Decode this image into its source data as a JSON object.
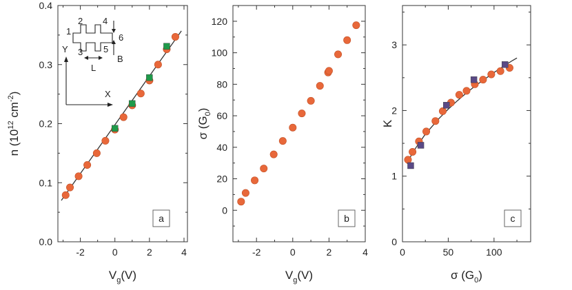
{
  "colors": {
    "circle_marker": "#e8683a",
    "circle_stroke": "#c24f25",
    "square_green": "#1f9a4a",
    "square_purple": "#5a4a86",
    "fit_line": "#333333",
    "axis": "#333333"
  },
  "chart_data": [
    {
      "panel": "a",
      "type": "scatter",
      "xlabel": "V",
      "xlabel_sub": "g",
      "xlabel_unit": "(V)",
      "ylabel": "n (10",
      "ylabel_sup1": "12",
      "ylabel_mid": " cm",
      "ylabel_sup2": "-2",
      "ylabel_end": ")",
      "xlim": [
        -3.3,
        4.2
      ],
      "ylim": [
        0,
        0.4
      ],
      "xticks": [
        -2,
        0,
        2,
        4
      ],
      "xtick_labels": [
        "-2",
        "0",
        "2",
        "4"
      ],
      "yticks": [
        0,
        0.1,
        0.2,
        0.3,
        0.4
      ],
      "ytick_labels": [
        "0.0",
        "0.1",
        "0.2",
        "0.3",
        "0.4"
      ],
      "xminor": [
        -3,
        -1,
        1,
        3
      ],
      "yminor": [
        0.05,
        0.15,
        0.25,
        0.35
      ],
      "panel_label": "a",
      "series": [
        {
          "marker": "circle",
          "x": [
            -2.85,
            -2.6,
            -2.1,
            -1.6,
            -1.05,
            -0.55,
            0.0,
            0.5,
            1.0,
            1.5,
            2.0,
            2.5,
            3.0,
            3.5
          ],
          "y": [
            0.079,
            0.092,
            0.111,
            0.13,
            0.15,
            0.171,
            0.19,
            0.211,
            0.231,
            0.251,
            0.273,
            0.3,
            0.326,
            0.347
          ]
        },
        {
          "marker": "square-green",
          "x": [
            0.0,
            1.0,
            2.0,
            3.0
          ],
          "y": [
            0.192,
            0.234,
            0.278,
            0.331
          ]
        }
      ],
      "fit": {
        "x": [
          -3.1,
          3.85
        ],
        "y": [
          0.07,
          0.357
        ]
      },
      "inset": {
        "labels": [
          "1",
          "2",
          "3",
          "4",
          "5",
          "6"
        ],
        "axis_y": "Y",
        "axis_x": "X",
        "field": "B",
        "length": "L"
      }
    },
    {
      "panel": "b",
      "type": "scatter",
      "xlabel": "V",
      "xlabel_sub": "g",
      "xlabel_unit": "(V)",
      "ylabel": "σ (G",
      "ylabel_sub": "0",
      "ylabel_end": ")",
      "xlim": [
        -3.3,
        4.0
      ],
      "ylim": [
        -20,
        130
      ],
      "xticks": [
        -2,
        0,
        2,
        4
      ],
      "xtick_labels": [
        "-2",
        "0",
        "2",
        "4"
      ],
      "yticks": [
        -20,
        0,
        20,
        40,
        60,
        80,
        100,
        120
      ],
      "ytick_labels": [
        "",
        "0",
        "20",
        "40",
        "60",
        "80",
        "100",
        "120"
      ],
      "xminor": [
        -3,
        -1,
        1,
        3
      ],
      "yminor": [
        -10,
        10,
        30,
        50,
        70,
        90,
        110
      ],
      "panel_label": "b",
      "series": [
        {
          "marker": "circle",
          "x": [
            -2.85,
            -2.6,
            -2.1,
            -1.6,
            -1.05,
            -0.55,
            0.0,
            0.5,
            1.0,
            1.5,
            1.95,
            2.0,
            2.5,
            3.0,
            3.5
          ],
          "y": [
            5.5,
            11,
            19,
            26.5,
            35.5,
            44,
            52.5,
            61.5,
            69.5,
            79,
            87.5,
            88.5,
            99,
            108,
            117.5
          ]
        }
      ]
    },
    {
      "panel": "c",
      "type": "scatter",
      "xlabel": "σ (G",
      "xlabel_sub": "0",
      "xlabel_end": ")",
      "ylabel": "K",
      "xlim": [
        0,
        140
      ],
      "ylim": [
        0,
        3.6
      ],
      "xticks": [
        0,
        50,
        100
      ],
      "xtick_labels": [
        "0",
        "50",
        "100"
      ],
      "yticks": [
        0,
        1,
        2,
        3
      ],
      "ytick_labels": [
        "0",
        "1",
        "2",
        "3"
      ],
      "xminor": [
        25,
        75,
        125
      ],
      "yminor": [
        0.5,
        1.5,
        2.5,
        3.5
      ],
      "panel_label": "c",
      "series": [
        {
          "marker": "circle",
          "x": [
            6,
            11,
            18,
            26,
            36,
            44,
            53,
            62,
            70,
            79,
            88,
            97,
            107,
            117
          ],
          "y": [
            1.25,
            1.37,
            1.53,
            1.68,
            1.84,
            1.99,
            2.12,
            2.24,
            2.3,
            2.4,
            2.47,
            2.55,
            2.6,
            2.65
          ]
        },
        {
          "marker": "square-purple",
          "x": [
            9,
            20,
            48,
            78,
            112
          ],
          "y": [
            1.16,
            1.47,
            2.08,
            2.47,
            2.7
          ]
        }
      ],
      "fit": {
        "x": [
          5,
          10,
          15,
          20,
          25,
          30,
          40,
          50,
          60,
          70,
          80,
          90,
          100,
          110,
          120,
          125
        ],
        "y": [
          1.19,
          1.33,
          1.44,
          1.54,
          1.64,
          1.72,
          1.88,
          2.02,
          2.15,
          2.27,
          2.38,
          2.48,
          2.58,
          2.67,
          2.76,
          2.8
        ]
      }
    }
  ]
}
